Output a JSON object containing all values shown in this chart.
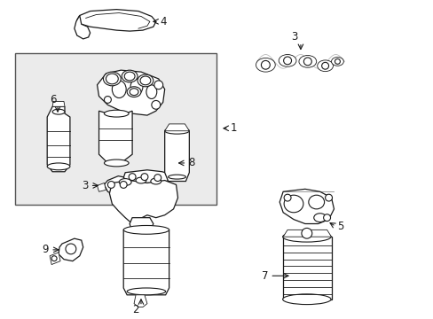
{
  "bg_color": "#ffffff",
  "box_bg": "#ebebeb",
  "box_edge": "#555555",
  "lc": "#1a1a1a",
  "lw_main": 0.9,
  "lw_detail": 0.6,
  "figsize": [
    4.89,
    3.6
  ],
  "dpi": 100
}
